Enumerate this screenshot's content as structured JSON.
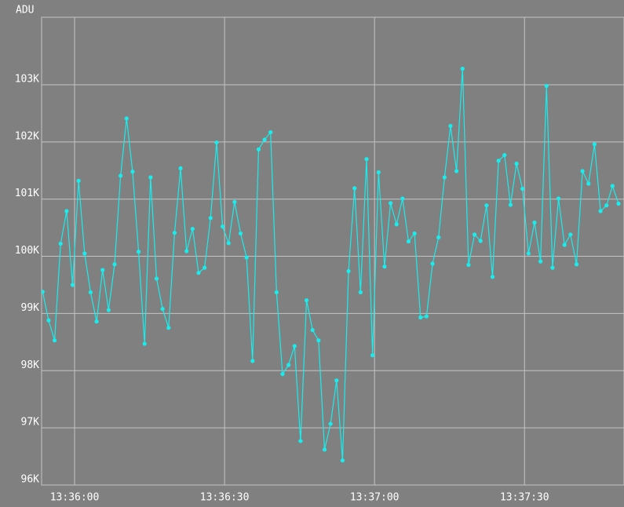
{
  "chart_data": {
    "type": "line",
    "y_axis_label": "ADU",
    "color": "#19ecec",
    "grid": true,
    "markers": true,
    "xlim": [
      49313.4,
      49429.9
    ],
    "xticks": [
      {
        "value": 49320,
        "label": "13:36:00"
      },
      {
        "value": 49350,
        "label": "13:36:30"
      },
      {
        "value": 49380,
        "label": "13:37:00"
      },
      {
        "value": 49410,
        "label": "13:37:30"
      }
    ],
    "ylim": [
      96000,
      104180
    ],
    "yticks": [
      {
        "value": 96000,
        "label": "96K"
      },
      {
        "value": 97000,
        "label": "97K"
      },
      {
        "value": 98000,
        "label": "98K"
      },
      {
        "value": 99000,
        "label": "99K"
      },
      {
        "value": 100000,
        "label": "100K"
      },
      {
        "value": 101000,
        "label": "101K"
      },
      {
        "value": 102000,
        "label": "102K"
      },
      {
        "value": 103000,
        "label": "103K"
      }
    ],
    "x": [
      49313.6,
      49314.8,
      49316,
      49317.2,
      49318.4,
      49319.6,
      49320.8,
      49322,
      49323.2,
      49324.4,
      49325.6,
      49326.8,
      49328,
      49329.2,
      49330.4,
      49331.6,
      49332.8,
      49334,
      49335.2,
      49336.4,
      49337.6,
      49338.8,
      49340,
      49341.2,
      49342.4,
      49343.6,
      49344.8,
      49346,
      49347.2,
      49348.4,
      49349.6,
      49350.8,
      49352,
      49353.2,
      49354.4,
      49355.6,
      49356.8,
      49358,
      49359.2,
      49360.4,
      49361.6,
      49362.8,
      49364,
      49365.2,
      49366.4,
      49367.6,
      49368.8,
      49370,
      49371.2,
      49372.4,
      49373.6,
      49374.8,
      49376,
      49377.2,
      49378.4,
      49379.6,
      49380.8,
      49382,
      49383.2,
      49384.4,
      49385.6,
      49386.8,
      49388,
      49389.2,
      49390.4,
      49391.6,
      49392.8,
      49394,
      49395.2,
      49396.4,
      49397.6,
      49398.8,
      49400,
      49401.2,
      49402.4,
      49403.6,
      49404.8,
      49406,
      49407.2,
      49408.4,
      49409.6,
      49410.8,
      49412,
      49413.2,
      49414.4,
      49415.6,
      49416.8,
      49418,
      49419.2,
      49420.4,
      49421.6,
      49422.8,
      49424,
      49425.2,
      49426.4,
      49427.6,
      49428.8
    ],
    "values": [
      99380,
      98880,
      98530,
      100220,
      100790,
      99500,
      101320,
      100050,
      99370,
      98860,
      99760,
      99060,
      99860,
      101410,
      102410,
      101480,
      100080,
      98470,
      101380,
      99610,
      99080,
      98750,
      100410,
      101540,
      100090,
      100480,
      99710,
      99800,
      100670,
      101990,
      100520,
      100230,
      100950,
      100400,
      99980,
      98170,
      101870,
      102040,
      102170,
      99370,
      97940,
      98100,
      98430,
      96770,
      99230,
      98710,
      98530,
      96620,
      97070,
      97830,
      96430,
      99740,
      101190,
      99370,
      101700,
      98270,
      101470,
      99820,
      100930,
      100560,
      101010,
      100260,
      100400,
      98930,
      98950,
      99870,
      100330,
      101380,
      102280,
      101490,
      103280,
      99850,
      100380,
      100270,
      100890,
      99640,
      101670,
      101770,
      100900,
      101620,
      101180,
      100050,
      100590,
      99910,
      102980,
      99800,
      101010,
      100200,
      100380,
      99860,
      101490,
      101270,
      101960,
      100790,
      100890,
      101230,
      100920
    ]
  }
}
